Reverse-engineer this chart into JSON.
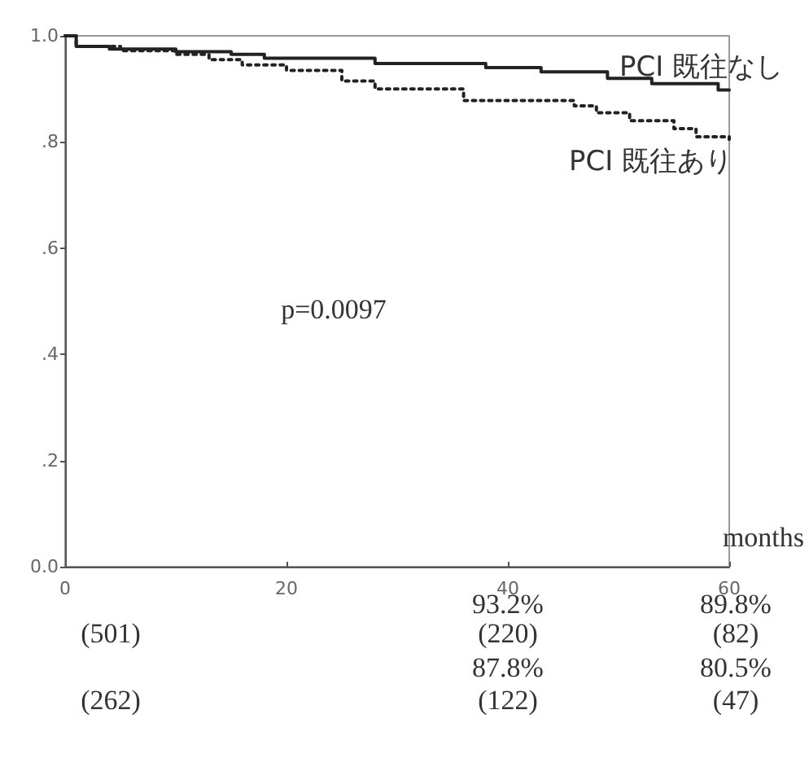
{
  "chart_data": {
    "type": "step",
    "xlabel": "months",
    "xlim": [
      0,
      60
    ],
    "xticks": [
      0,
      20,
      40,
      60
    ],
    "ylim": [
      0,
      1
    ],
    "yticks": [
      {
        "value": 0,
        "label": "0.0"
      },
      {
        "value": 0.2,
        "label": ".2"
      },
      {
        "value": 0.4,
        "label": ".4"
      },
      {
        "value": 0.6,
        "label": ".6"
      },
      {
        "value": 0.8,
        "label": ".8"
      },
      {
        "value": 1,
        "label": "1.0"
      }
    ],
    "grid": false,
    "legend": false,
    "marker": "none",
    "series": [
      {
        "name": "PCI 既往なし",
        "color": "#222222",
        "line_style": "solid",
        "x": [
          0,
          1,
          4,
          10,
          15,
          18,
          28,
          38,
          43,
          49,
          53,
          59,
          60
        ],
        "values": [
          1.0,
          0.98,
          0.975,
          0.97,
          0.965,
          0.958,
          0.948,
          0.94,
          0.932,
          0.92,
          0.91,
          0.898,
          0.898
        ]
      },
      {
        "name": "PCI 既往あり",
        "color": "#222222",
        "line_style": "dotted",
        "x": [
          0,
          1,
          5,
          10,
          13,
          16,
          20,
          25,
          28,
          36,
          46,
          48,
          51,
          55,
          57,
          60
        ],
        "values": [
          1.0,
          0.98,
          0.972,
          0.965,
          0.955,
          0.945,
          0.935,
          0.915,
          0.9,
          0.878,
          0.868,
          0.855,
          0.84,
          0.825,
          0.81,
          0.805
        ]
      }
    ],
    "annotations": [
      "p=0.0097",
      "93.2%",
      "89.8%",
      "(501)",
      "(220)",
      "(82)",
      "87.8%",
      "80.5%",
      "(262)",
      "(122)",
      "(47)"
    ]
  }
}
